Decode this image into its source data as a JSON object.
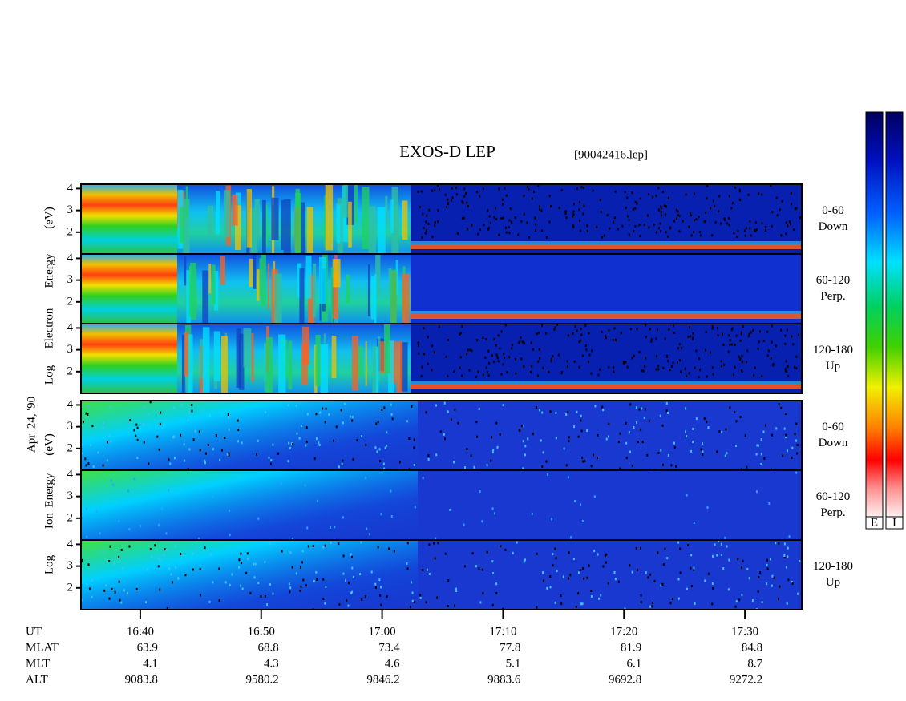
{
  "title": "EXOS-D LEP",
  "file": "[90042416.lep]",
  "date_label": "Apr. 24, '90",
  "groups": [
    {
      "words": [
        "Log",
        "Electron",
        "Energy",
        "(eV)"
      ]
    },
    {
      "words": [
        "Log",
        "Ion",
        "Energy",
        "(eV)"
      ]
    }
  ],
  "panels": [
    {
      "angle": "0-60",
      "direction": "Down"
    },
    {
      "angle": "60-120",
      "direction": "Perp."
    },
    {
      "angle": "120-180",
      "direction": "Up"
    },
    {
      "angle": "0-60",
      "direction": "Down"
    },
    {
      "angle": "60-120",
      "direction": "Perp."
    },
    {
      "angle": "120-180",
      "direction": "Up"
    }
  ],
  "ylim": [
    1,
    4.2
  ],
  "yticks": [
    2,
    3,
    4
  ],
  "xlim": [
    995.1,
    1054.7
  ],
  "xticks": [
    {
      "value": 1000,
      "label": "16:40"
    },
    {
      "value": 1010,
      "label": "16:50"
    },
    {
      "value": 1020,
      "label": "17:00"
    },
    {
      "value": 1030,
      "label": "17:10"
    },
    {
      "value": 1040,
      "label": "17:20"
    },
    {
      "value": 1050,
      "label": "17:30"
    }
  ],
  "ephemeris": {
    "time_label": "UT",
    "rows": [
      {
        "name": "MLAT",
        "values": [
          63.9,
          68.8,
          73.4,
          77.8,
          81.9,
          84.8
        ]
      },
      {
        "name": "MLT",
        "values": [
          4.1,
          4.3,
          4.6,
          5.1,
          6.1,
          8.7
        ]
      },
      {
        "name": "ALT",
        "values": [
          9083.8,
          9580.2,
          9846.2,
          9883.6,
          9692.8,
          9272.2
        ]
      }
    ]
  },
  "colorbar_labels": [
    "E",
    "I"
  ]
}
